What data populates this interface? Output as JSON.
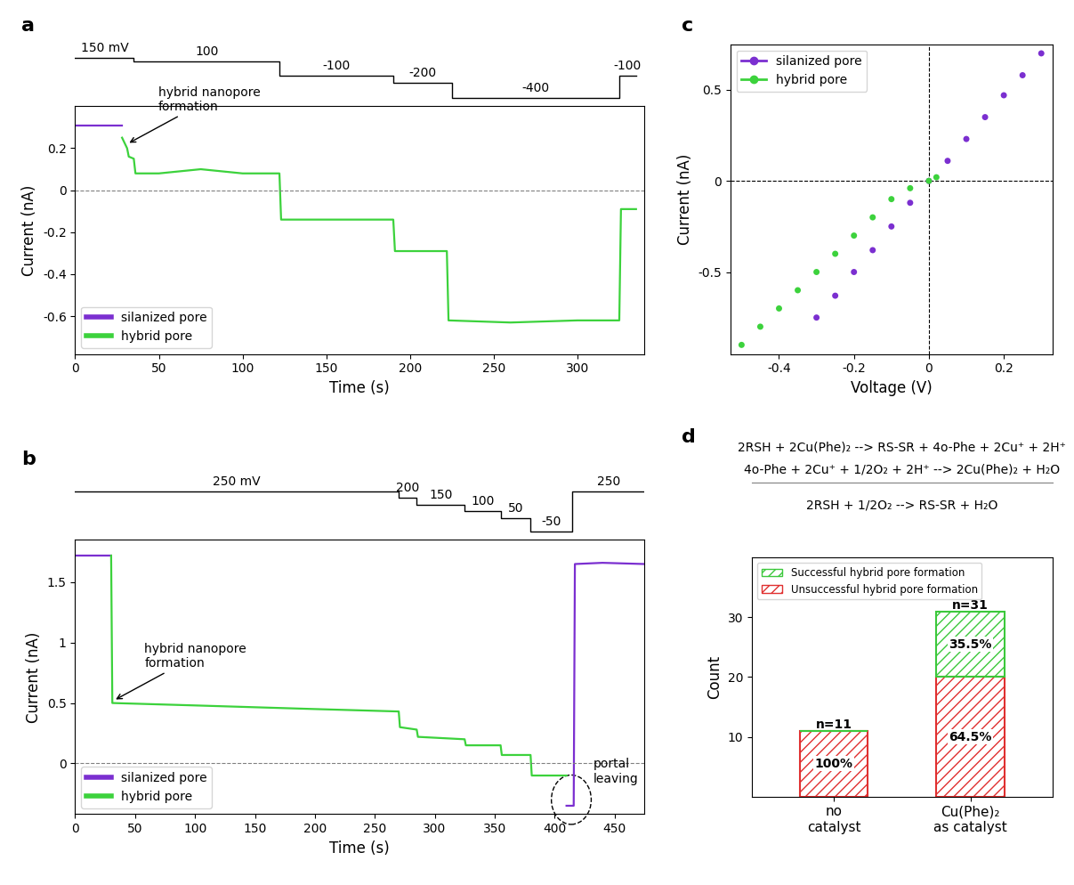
{
  "chart_data": [
    {
      "panel": "a",
      "type": "line",
      "xlabel": "Time (s)",
      "ylabel": "Current (nA)",
      "xlim": [
        0,
        340
      ],
      "ylim": [
        -0.78,
        0.4
      ],
      "xticks": [
        0,
        50,
        100,
        150,
        200,
        250,
        300
      ],
      "yticks": [
        -0.6,
        -0.4,
        -0.2,
        0,
        0.2
      ],
      "legend": "lower left",
      "voltage_protocol": {
        "times": [
          0,
          35,
          122,
          190,
          225,
          325,
          335
        ],
        "levels": [
          150,
          100,
          -100,
          -200,
          -400,
          -100
        ],
        "labels": [
          "150 mV",
          "100",
          "-100",
          "-200",
          "-400",
          "-100"
        ]
      },
      "series": [
        {
          "name": "silanized pore",
          "color": "#7b2fd0",
          "x": [
            0,
            10,
            20,
            28
          ],
          "values": [
            0.31,
            0.31,
            0.31,
            0.31
          ]
        },
        {
          "name": "hybrid pore",
          "color": "#3cd23c",
          "x": [
            28,
            31,
            32,
            35,
            36,
            50,
            75,
            100,
            122,
            123,
            160,
            190,
            191,
            222,
            223,
            260,
            300,
            325,
            326,
            335
          ],
          "values": [
            0.25,
            0.2,
            0.16,
            0.15,
            0.08,
            0.08,
            0.1,
            0.08,
            0.08,
            -0.14,
            -0.14,
            -0.14,
            -0.29,
            -0.29,
            -0.62,
            -0.63,
            -0.62,
            -0.62,
            -0.09,
            -0.09
          ]
        }
      ],
      "arrow_annotations": [
        {
          "text": "hybrid nanopore\nformation",
          "x": 31,
          "y": 0.22
        }
      ],
      "circle_annotations": []
    },
    {
      "panel": "b",
      "type": "line",
      "xlabel": "Time (s)",
      "ylabel": "Current (nA)",
      "xlim": [
        0,
        475
      ],
      "ylim": [
        -0.42,
        1.85
      ],
      "xticks": [
        0,
        50,
        100,
        150,
        200,
        250,
        300,
        350,
        400,
        450
      ],
      "yticks": [
        0,
        0.5,
        1,
        1.5
      ],
      "legend": "lower left",
      "voltage_protocol": {
        "times": [
          0,
          270,
          285,
          325,
          355,
          380,
          415,
          475
        ],
        "levels": [
          250,
          200,
          150,
          100,
          50,
          -50,
          250
        ],
        "labels": [
          "250 mV",
          "200",
          "150",
          "100",
          "50",
          "-50",
          "250"
        ]
      },
      "series": [
        {
          "name": "silanized pore",
          "color": "#7b2fd0",
          "x": [
            0,
            15,
            30,
            31,
            410,
            412,
            416,
            417,
            440,
            475
          ],
          "values": [
            1.72,
            1.72,
            1.72,
            null,
            -0.35,
            -0.35,
            -0.35,
            1.65,
            1.66,
            1.65
          ]
        },
        {
          "name": "hybrid pore",
          "color": "#3cd23c",
          "x": [
            30,
            31,
            100,
            200,
            270,
            271,
            285,
            286,
            325,
            326,
            355,
            356,
            380,
            381,
            410
          ],
          "values": [
            1.72,
            0.5,
            0.48,
            0.45,
            0.43,
            0.3,
            0.28,
            0.22,
            0.2,
            0.15,
            0.15,
            0.07,
            0.07,
            -0.1,
            -0.1
          ]
        }
      ],
      "arrow_annotations": [
        {
          "text": "hybrid nanopore\nformation",
          "x": 32,
          "y": 0.52
        }
      ],
      "circle_annotations": [
        {
          "text": "portal\nleaving",
          "x": 414,
          "y": -0.3
        }
      ]
    },
    {
      "panel": "c",
      "type": "scatter",
      "xlabel": "Voltage (V)",
      "ylabel": "Current (nA)",
      "xlim": [
        -0.53,
        0.33
      ],
      "ylim": [
        -0.95,
        0.75
      ],
      "xticks": [
        -0.4,
        -0.2,
        0,
        0.2
      ],
      "yticks": [
        -0.5,
        0,
        0.5
      ],
      "legend": "upper left",
      "series": [
        {
          "name": "silanized pore",
          "color": "#7b2fd0",
          "x": [
            -0.3,
            -0.25,
            -0.2,
            -0.15,
            -0.1,
            -0.05,
            0,
            0.05,
            0.1,
            0.15,
            0.2,
            0.25,
            0.3
          ],
          "values": [
            -0.75,
            -0.63,
            -0.5,
            -0.38,
            -0.25,
            -0.12,
            0,
            0.11,
            0.23,
            0.35,
            0.47,
            0.58,
            0.7
          ]
        },
        {
          "name": "hybrid pore",
          "color": "#3cd23c",
          "x": [
            -0.5,
            -0.45,
            -0.4,
            -0.35,
            -0.3,
            -0.25,
            -0.2,
            -0.15,
            -0.1,
            -0.05,
            0,
            0.02
          ],
          "values": [
            -0.9,
            -0.8,
            -0.7,
            -0.6,
            -0.5,
            -0.4,
            -0.3,
            -0.2,
            -0.1,
            -0.04,
            0,
            0.02
          ]
        }
      ]
    },
    {
      "panel": "d",
      "type": "bar",
      "stacked": true,
      "equations": [
        "2RSH + 2Cu(Phe)₂ --> RS-SR + 4o-Phe + 2Cu⁺ + 2H⁺",
        "4o-Phe + 2Cu⁺ + 1/2O₂ + 2H⁺ --> 2Cu(Phe)₂ + H₂O",
        "2RSH + 1/2O₂ --> RS-SR + H₂O"
      ],
      "ylabel": "Count",
      "ylim": [
        0,
        40
      ],
      "yticks": [
        10,
        20,
        30
      ],
      "legend": "upper left",
      "categories": [
        "no\ncatalyst",
        "Cu(Phe)₂\nas catalyst"
      ],
      "n_labels": [
        "n=11",
        "n=31"
      ],
      "series": [
        {
          "name": "Unsuccessful hybrid pore formation",
          "color": "#e03030",
          "values": [
            11,
            20
          ],
          "percent_labels": [
            "100%",
            "64.5%"
          ]
        },
        {
          "name": "Successful hybrid pore formation",
          "color": "#3cc83c",
          "values": [
            0,
            11
          ],
          "percent_labels": [
            null,
            "35.5%"
          ]
        }
      ]
    }
  ]
}
